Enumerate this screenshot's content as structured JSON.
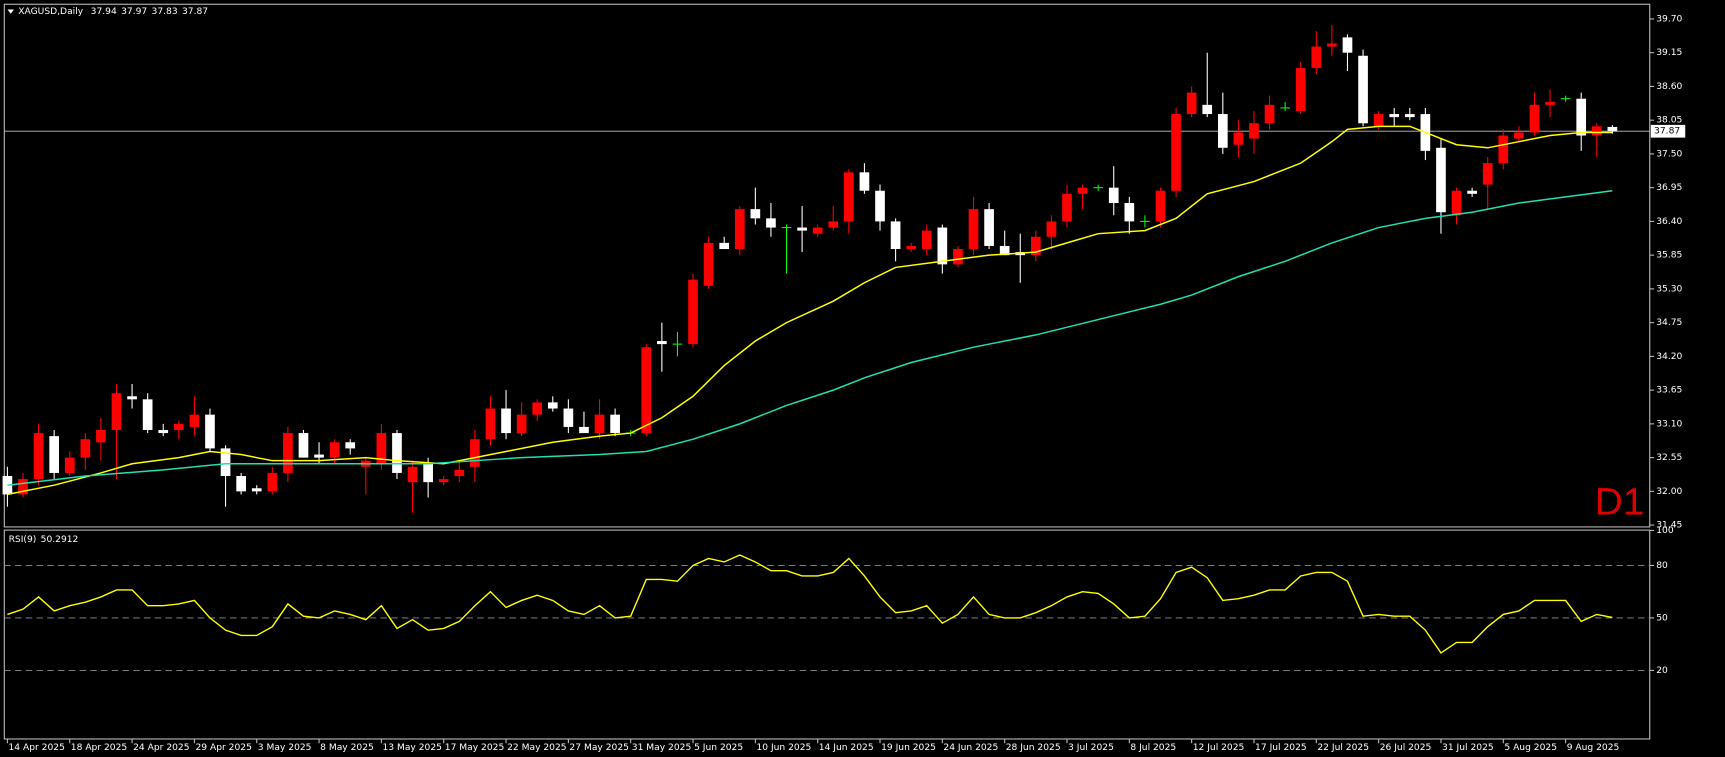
{
  "chart_data": [
    {
      "type": "candlestick",
      "title": "XAGUSD,Daily",
      "annotation": "D1",
      "open": [
        32.25,
        31.95,
        32.2,
        32.9,
        32.3,
        32.55,
        32.8,
        33.0,
        33.55,
        33.5,
        33.0,
        33.0,
        33.05,
        33.25,
        32.7,
        32.25,
        32.05,
        32.0,
        32.3,
        32.95,
        32.6,
        32.55,
        32.8,
        32.4,
        32.45,
        32.95,
        32.15,
        32.45,
        32.15,
        32.25,
        32.4,
        32.85,
        33.35,
        32.95,
        33.25,
        33.45,
        33.35,
        33.05,
        32.95,
        33.25,
        32.95,
        32.95,
        34.45,
        34.4,
        34.4,
        35.35,
        36.05,
        35.95,
        36.6,
        36.45,
        36.3,
        36.3,
        36.2,
        36.3,
        36.4,
        37.2,
        36.9,
        36.4,
        35.95,
        35.95,
        36.3,
        35.7,
        35.95,
        36.6,
        36.0,
        35.9,
        35.85,
        36.15,
        36.4,
        36.85,
        36.95,
        36.95,
        36.7,
        36.4,
        36.4,
        36.9,
        38.15,
        38.3,
        38.15,
        37.65,
        37.75,
        38.0,
        38.25,
        38.2,
        38.9,
        39.25,
        39.4,
        39.1,
        37.95,
        38.15,
        38.15,
        38.15,
        37.6,
        36.5,
        36.9,
        37.0,
        37.35,
        37.75,
        37.85,
        38.3,
        38.4,
        38.4,
        37.8,
        37.94
      ],
      "high": [
        32.4,
        32.3,
        33.1,
        33.0,
        32.65,
        32.95,
        33.2,
        33.75,
        33.75,
        33.6,
        33.1,
        33.15,
        33.55,
        33.35,
        32.75,
        32.3,
        32.1,
        32.4,
        33.05,
        33.0,
        32.8,
        32.85,
        32.85,
        32.55,
        33.1,
        33.0,
        32.5,
        32.55,
        32.25,
        32.5,
        33.0,
        33.55,
        33.65,
        33.45,
        33.5,
        33.55,
        33.5,
        33.3,
        33.5,
        33.35,
        33.0,
        34.4,
        34.75,
        34.6,
        35.55,
        36.15,
        36.15,
        36.65,
        36.95,
        36.7,
        36.35,
        36.65,
        36.35,
        36.65,
        37.25,
        37.35,
        37.0,
        36.45,
        36.05,
        36.35,
        36.35,
        36.0,
        36.8,
        36.7,
        36.25,
        36.2,
        36.25,
        36.5,
        37.0,
        37.0,
        37.0,
        37.3,
        36.8,
        36.5,
        36.95,
        38.25,
        38.6,
        39.15,
        38.5,
        38.05,
        38.2,
        38.45,
        38.35,
        39.0,
        39.5,
        39.6,
        39.45,
        39.2,
        38.2,
        38.25,
        38.25,
        38.25,
        37.75,
        36.95,
        36.95,
        37.45,
        37.9,
        37.95,
        38.5,
        38.55,
        38.45,
        38.5,
        38.0,
        37.97
      ],
      "low": [
        31.75,
        31.9,
        32.1,
        32.2,
        32.25,
        32.35,
        32.5,
        32.2,
        33.35,
        32.95,
        32.9,
        32.85,
        32.9,
        32.65,
        31.75,
        31.95,
        31.95,
        31.95,
        32.15,
        32.55,
        32.45,
        32.45,
        32.6,
        31.95,
        32.35,
        32.2,
        31.65,
        31.9,
        32.1,
        32.15,
        32.15,
        32.75,
        32.85,
        32.9,
        33.15,
        33.3,
        32.95,
        32.95,
        32.85,
        32.9,
        32.9,
        32.9,
        33.95,
        34.2,
        34.35,
        35.3,
        35.95,
        35.85,
        36.35,
        36.15,
        35.55,
        35.9,
        36.15,
        36.25,
        36.2,
        36.85,
        36.25,
        35.75,
        35.9,
        35.85,
        35.55,
        35.65,
        35.85,
        35.95,
        35.85,
        35.4,
        35.75,
        35.95,
        36.3,
        36.6,
        36.9,
        36.5,
        36.2,
        36.3,
        36.3,
        36.8,
        38.1,
        38.1,
        37.5,
        37.45,
        37.5,
        37.9,
        38.2,
        38.15,
        38.8,
        39.1,
        38.85,
        37.95,
        37.9,
        37.95,
        38.05,
        37.4,
        36.2,
        36.35,
        36.8,
        36.6,
        37.25,
        37.7,
        37.8,
        38.1,
        38.35,
        37.55,
        37.45,
        37.83
      ],
      "close": [
        31.95,
        32.2,
        32.95,
        32.3,
        32.55,
        32.85,
        33.0,
        33.6,
        33.5,
        33.0,
        32.95,
        33.1,
        33.25,
        32.7,
        32.25,
        32.0,
        32.0,
        32.3,
        32.95,
        32.55,
        32.55,
        32.8,
        32.7,
        32.5,
        32.95,
        32.3,
        32.4,
        32.15,
        32.2,
        32.35,
        32.85,
        33.35,
        32.95,
        33.25,
        33.45,
        33.35,
        33.05,
        32.95,
        33.25,
        32.95,
        32.95,
        34.35,
        34.4,
        34.4,
        35.45,
        36.05,
        35.95,
        36.6,
        36.45,
        36.3,
        36.3,
        36.25,
        36.3,
        36.4,
        37.2,
        36.9,
        36.4,
        35.95,
        36.0,
        36.25,
        35.7,
        35.95,
        36.6,
        36.0,
        35.85,
        35.85,
        36.15,
        36.4,
        36.85,
        36.95,
        36.95,
        36.7,
        36.4,
        36.4,
        36.9,
        38.15,
        38.5,
        38.15,
        37.6,
        37.85,
        38.0,
        38.3,
        38.25,
        38.9,
        39.25,
        39.3,
        39.15,
        38.0,
        38.15,
        38.1,
        38.1,
        37.55,
        36.55,
        36.9,
        36.85,
        37.35,
        37.8,
        37.85,
        38.3,
        38.35,
        38.4,
        37.8,
        37.95,
        37.87
      ],
      "bull_color": "#ff0000",
      "bear_color": "#ffffff",
      "doji_color": "#00ff00",
      "series": [
        {
          "color": "#ffff00",
          "x": [
            0,
            3,
            6,
            8,
            11,
            13,
            15,
            17,
            20,
            23,
            25,
            28,
            30,
            32,
            35,
            38,
            40,
            42,
            44,
            46,
            48,
            50,
            53,
            55,
            57,
            60,
            63,
            66,
            68,
            70,
            73,
            75,
            77,
            80,
            83,
            85,
            86,
            88,
            90,
            91,
            93,
            95,
            97,
            99,
            101,
            103
          ],
          "values": [
            31.95,
            32.1,
            32.3,
            32.45,
            32.55,
            32.65,
            32.6,
            32.5,
            32.5,
            32.55,
            32.5,
            32.45,
            32.55,
            32.65,
            32.8,
            32.9,
            32.95,
            33.2,
            33.55,
            34.05,
            34.45,
            34.75,
            35.1,
            35.4,
            35.65,
            35.75,
            35.85,
            35.9,
            36.05,
            36.2,
            36.25,
            36.45,
            36.85,
            37.05,
            37.35,
            37.7,
            37.9,
            37.95,
            37.95,
            37.85,
            37.65,
            37.6,
            37.7,
            37.8,
            37.85,
            37.85
          ]
        },
        {
          "color": "#20e0b0",
          "x": [
            0,
            5,
            10,
            14,
            20,
            27,
            33,
            38,
            41,
            44,
            47,
            50,
            53,
            55,
            58,
            62,
            66,
            70,
            74,
            76,
            79,
            82,
            85,
            88,
            91,
            94,
            97,
            100,
            103
          ],
          "values": [
            32.1,
            32.25,
            32.35,
            32.45,
            32.45,
            32.45,
            32.55,
            32.6,
            32.65,
            32.85,
            33.1,
            33.4,
            33.65,
            33.85,
            34.1,
            34.35,
            34.55,
            34.8,
            35.05,
            35.2,
            35.5,
            35.75,
            36.05,
            36.3,
            36.45,
            36.55,
            36.7,
            36.8,
            36.9
          ]
        }
      ],
      "current_price": 37.87,
      "ylim": [
        31.42,
        39.94
      ],
      "yticks": [
        31.45,
        {
          "value": 32.0,
          "label": "32.00"
        },
        32.55,
        {
          "value": 33.1,
          "label": "33.10"
        },
        33.65,
        {
          "value": 34.2,
          "label": "34.20"
        },
        34.75,
        {
          "value": 35.3,
          "label": "35.30"
        },
        35.85,
        {
          "value": 36.4,
          "label": "36.40"
        },
        36.95,
        {
          "value": 37.5,
          "label": "37.50"
        },
        38.05,
        {
          "value": 38.6,
          "label": "38.60"
        },
        39.15,
        {
          "value": 39.7,
          "label": "39.70"
        }
      ],
      "xlim": [
        -0.2,
        105.4
      ],
      "xticks": [
        {
          "value": 0,
          "label": "14 Apr 2025"
        },
        {
          "value": 4,
          "label": "18 Apr 2025"
        },
        {
          "value": 8,
          "label": "24 Apr 2025"
        },
        {
          "value": 12,
          "label": "29 Apr 2025"
        },
        {
          "value": 16,
          "label": "3 May 2025"
        },
        {
          "value": 20,
          "label": "8 May 2025"
        },
        {
          "value": 24,
          "label": "13 May 2025"
        },
        {
          "value": 28,
          "label": "17 May 2025"
        },
        {
          "value": 32,
          "label": "22 May 2025"
        },
        {
          "value": 36,
          "label": "27 May 2025"
        },
        {
          "value": 40,
          "label": "31 May 2025"
        },
        {
          "value": 44,
          "label": "5 Jun 2025"
        },
        {
          "value": 48,
          "label": "10 Jun 2025"
        },
        {
          "value": 52,
          "label": "14 Jun 2025"
        },
        {
          "value": 56,
          "label": "19 Jun 2025"
        },
        {
          "value": 60,
          "label": "24 Jun 2025"
        },
        {
          "value": 64,
          "label": "28 Jun 2025"
        },
        {
          "value": 68,
          "label": "3 Jul 2025"
        },
        {
          "value": 72,
          "label": "8 Jul 2025"
        },
        {
          "value": 76,
          "label": "12 Jul 2025"
        },
        {
          "value": 80,
          "label": "17 Jul 2025"
        },
        {
          "value": 84,
          "label": "22 Jul 2025"
        },
        {
          "value": 88,
          "label": "26 Jul 2025"
        },
        {
          "value": 92,
          "label": "31 Jul 2025"
        },
        {
          "value": 96,
          "label": "5 Aug 2025"
        },
        {
          "value": 100,
          "label": "9 Aug 2025"
        }
      ]
    },
    {
      "type": "line",
      "title": "RSI(9)",
      "series": [
        {
          "color": "#ffff00",
          "values": [
            52,
            55,
            62,
            54,
            57,
            59,
            62,
            66,
            66,
            57,
            57,
            58,
            60,
            50,
            43,
            40,
            40,
            45,
            58,
            51,
            50,
            54,
            52,
            49,
            57,
            44,
            49,
            43,
            44,
            48,
            57,
            65,
            56,
            60,
            63,
            60,
            54,
            52,
            57,
            50,
            51,
            72,
            72,
            71,
            80,
            84,
            82,
            86,
            82,
            77,
            77,
            74,
            74,
            76,
            84,
            74,
            62,
            53,
            54,
            57,
            47,
            52,
            62,
            52,
            50,
            50,
            53,
            57,
            62,
            65,
            64,
            58,
            50,
            51,
            61,
            76,
            79,
            73,
            60,
            61,
            63,
            66,
            66,
            74,
            76,
            76,
            71,
            51,
            52,
            51,
            51,
            43,
            30,
            36,
            36,
            45,
            52,
            54,
            60,
            60,
            60,
            48,
            52,
            50.2912
          ]
        }
      ],
      "ylim": [
        -19.2,
        100.2
      ],
      "yticks": [
        20,
        50,
        80,
        100
      ],
      "levels": [
        20,
        50,
        80
      ]
    }
  ]
}
